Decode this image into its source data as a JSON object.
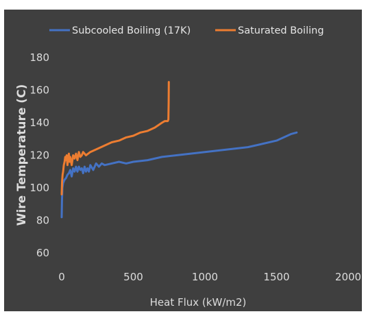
{
  "chart_data": {
    "type": "line",
    "title": "",
    "xlabel": "Heat Flux (kW/m2)",
    "ylabel": "Wire Temperature (C)",
    "xlim": [
      0,
      2000
    ],
    "ylim": [
      60,
      180
    ],
    "x_ticks": [
      0,
      500,
      1000,
      1500,
      2000
    ],
    "y_ticks": [
      60,
      80,
      100,
      120,
      140,
      160,
      180
    ],
    "grid": false,
    "legend_position": "top",
    "series": [
      {
        "name": "Subcooled Boiling (17K)",
        "color": "#4472c4",
        "x": [
          0,
          2,
          5,
          10,
          20,
          30,
          40,
          50,
          60,
          70,
          80,
          90,
          100,
          110,
          120,
          130,
          140,
          150,
          160,
          170,
          180,
          190,
          200,
          220,
          240,
          260,
          280,
          300,
          350,
          400,
          450,
          500,
          600,
          700,
          800,
          900,
          1000,
          1100,
          1200,
          1300,
          1400,
          1500,
          1600,
          1640
        ],
        "y": [
          82,
          92,
          100,
          103,
          105,
          106,
          108,
          109,
          111,
          107,
          112,
          110,
          113,
          110,
          113,
          111,
          112,
          109,
          113,
          110,
          112,
          110,
          114,
          111,
          115,
          113,
          115,
          114,
          115,
          116,
          115,
          116,
          117,
          119,
          120,
          121,
          122,
          123,
          124,
          125,
          127,
          129,
          133,
          134
        ]
      },
      {
        "name": "Saturated Boiling",
        "color": "#ed7d31",
        "x": [
          0,
          3,
          6,
          10,
          15,
          20,
          25,
          30,
          35,
          40,
          45,
          50,
          55,
          60,
          70,
          80,
          90,
          100,
          110,
          120,
          130,
          140,
          150,
          170,
          200,
          250,
          300,
          350,
          400,
          450,
          500,
          550,
          600,
          650,
          700,
          720,
          740,
          745,
          747,
          748
        ],
        "y": [
          96,
          104,
          108,
          110,
          114,
          116,
          119,
          117,
          120,
          114,
          118,
          121,
          116,
          119,
          114,
          120,
          118,
          121,
          117,
          122,
          119,
          120,
          122,
          120,
          122,
          124,
          126,
          128,
          129,
          131,
          132,
          134,
          135,
          137,
          140,
          141,
          141,
          142,
          153,
          165
        ]
      }
    ]
  }
}
